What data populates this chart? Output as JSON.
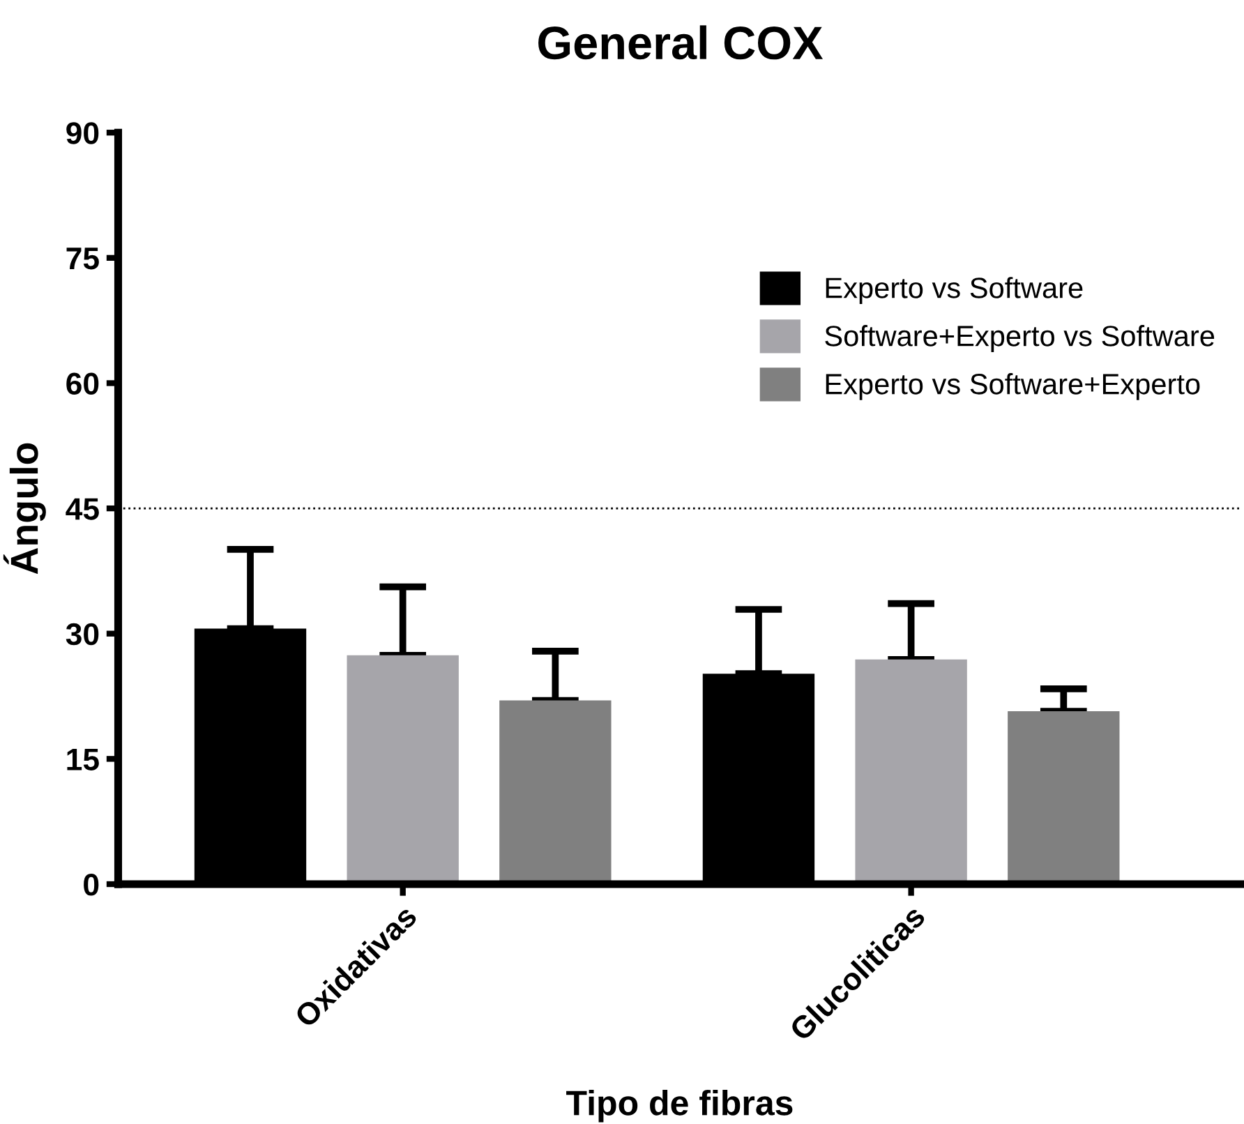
{
  "chart_data": {
    "type": "bar",
    "title": "General COX",
    "xlabel": "Tipo de fibras",
    "ylabel": "Ángulo",
    "categories": [
      "Oxidativas",
      "Glucoliticas"
    ],
    "series": [
      {
        "name": "Experto vs Software",
        "color": "#000000",
        "values": [
          30.6,
          25.2
        ],
        "errors": [
          [
            30.6,
            40.1
          ],
          [
            25.2,
            32.9
          ]
        ]
      },
      {
        "name": "Software+Experto vs Software",
        "color": "#a6a5aa",
        "values": [
          27.4,
          26.9
        ],
        "errors": [
          [
            27.4,
            35.6
          ],
          [
            26.9,
            33.6
          ]
        ]
      },
      {
        "name": "Experto vs Software+Experto",
        "color": "#808080",
        "values": [
          22.0,
          20.7
        ],
        "errors": [
          [
            22.0,
            27.9
          ],
          [
            20.7,
            23.4
          ]
        ]
      }
    ],
    "ylim": [
      0,
      90
    ],
    "yticks": [
      0,
      15,
      30,
      45,
      60,
      75,
      90
    ],
    "ref_lines": [
      {
        "axis": "y",
        "value": 45,
        "line_style": "dotted",
        "color": "#000000"
      }
    ],
    "legend": "top right",
    "grid": false
  }
}
